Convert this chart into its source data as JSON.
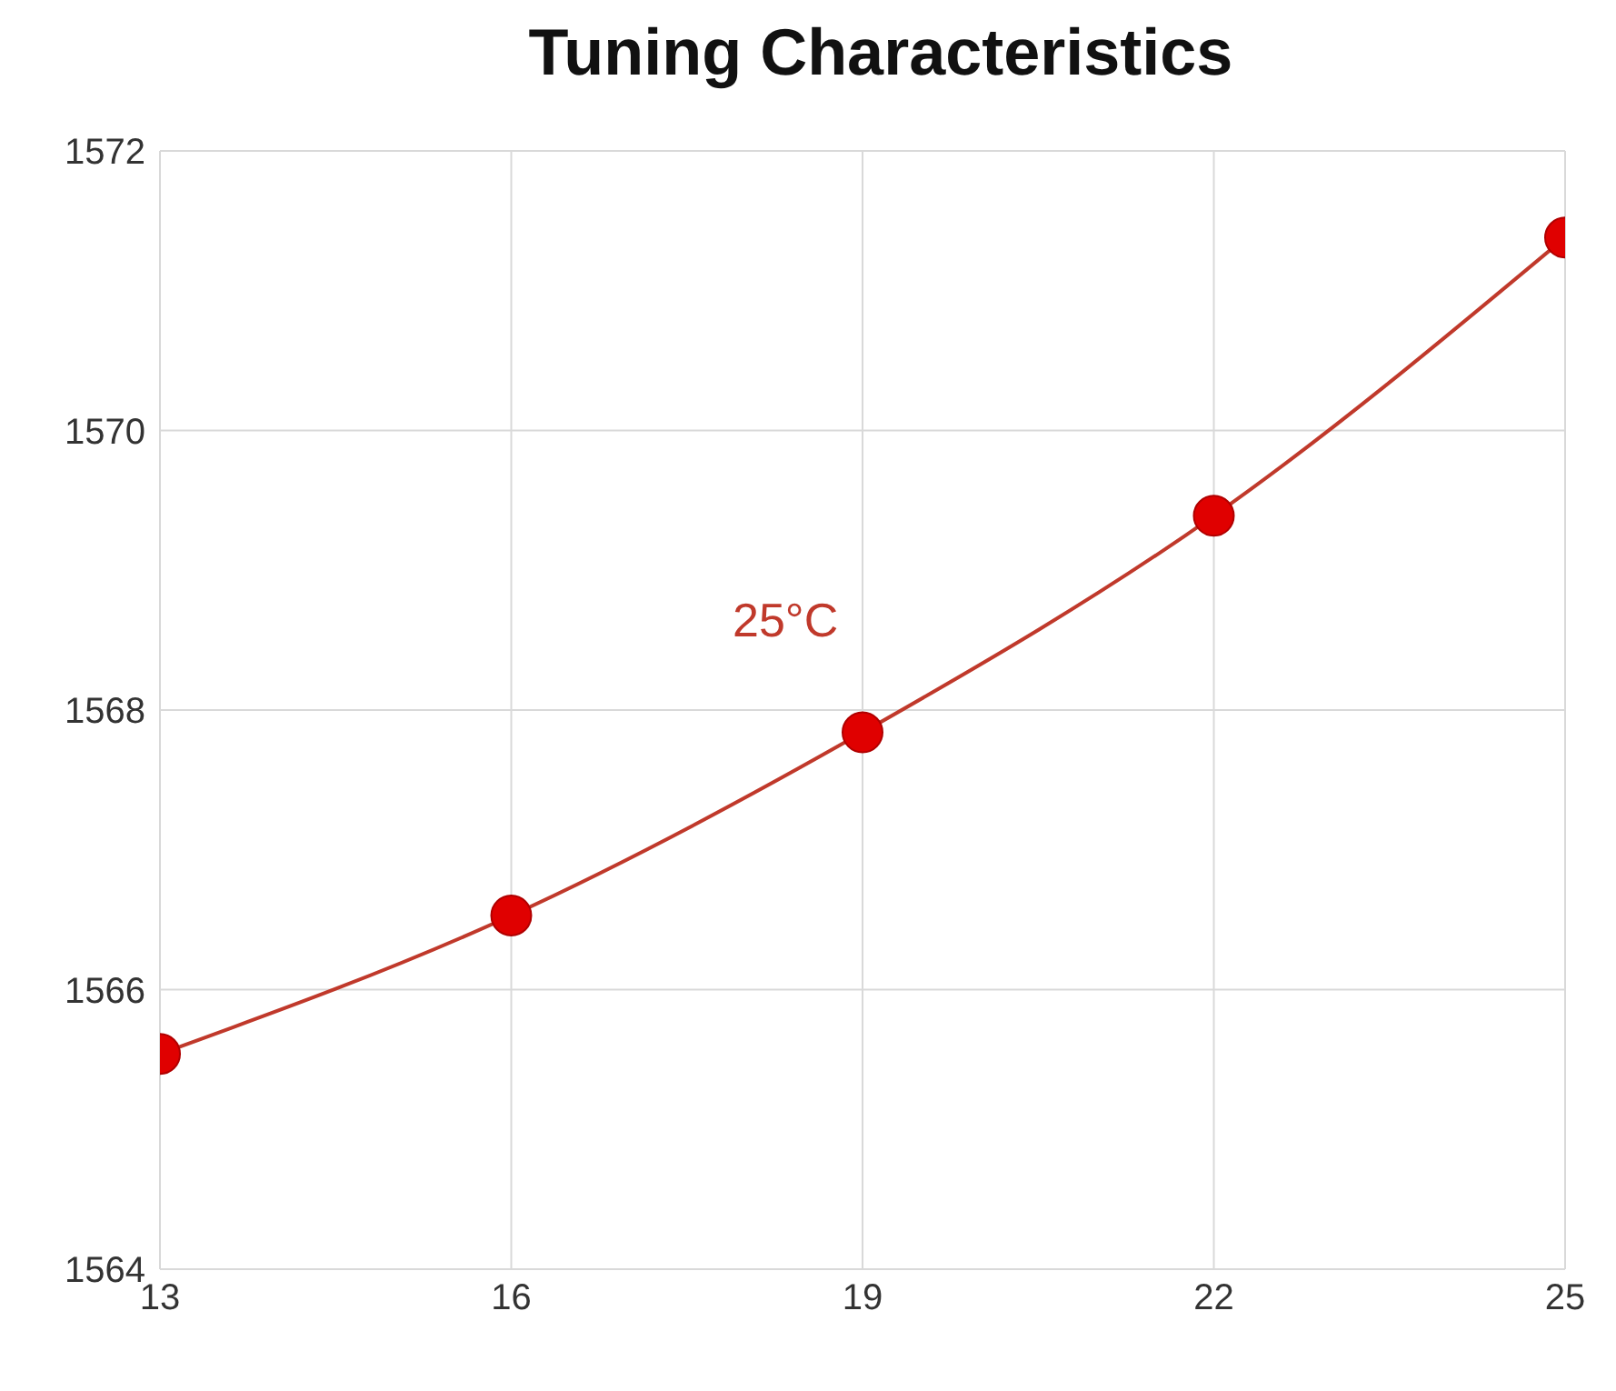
{
  "chart_data": {
    "type": "line",
    "title": "Tuning Characteristics",
    "x": [
      13,
      16,
      19,
      22,
      25
    ],
    "series": [
      {
        "color": "#c0392b",
        "values": [
          1565.54,
          1566.53,
          1567.84,
          1569.39,
          1571.38
        ]
      }
    ],
    "xlim": [
      13,
      25
    ],
    "xticks": [
      13,
      16,
      19,
      22,
      25
    ],
    "ylim": [
      1564,
      1572
    ],
    "yticks": [
      1564,
      1566,
      1568,
      1570,
      1572
    ],
    "grid": true,
    "marker": "circle",
    "line_style": "solid",
    "annotations": [
      "25°C"
    ]
  }
}
